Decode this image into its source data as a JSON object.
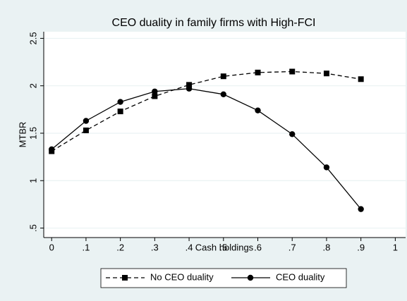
{
  "chart_data": {
    "type": "line",
    "title": "CEO duality in family firms with High-FCI",
    "xlabel": "Cash holdings",
    "ylabel": "MTBR",
    "x": [
      0,
      0.1,
      0.2,
      0.3,
      0.4,
      0.5,
      0.6,
      0.7,
      0.8,
      0.9
    ],
    "series": [
      {
        "name": "No CEO duality",
        "color": "#000000",
        "marker": "square",
        "dashed": true,
        "values": [
          1.31,
          1.53,
          1.73,
          1.89,
          2.01,
          2.1,
          2.14,
          2.15,
          2.13,
          2.07
        ]
      },
      {
        "name": "CEO duality",
        "color": "#000000",
        "marker": "circle",
        "dashed": false,
        "values": [
          1.33,
          1.63,
          1.83,
          1.94,
          1.97,
          1.91,
          1.74,
          1.49,
          1.14,
          0.7
        ]
      }
    ],
    "xlim": [
      -0.023,
      1.03
    ],
    "ylim": [
      0.4,
      2.57
    ],
    "xticks": [
      0,
      {
        "value": 0.1,
        "label": ".1"
      },
      {
        "value": 0.2,
        "label": ".2"
      },
      {
        "value": 0.3,
        "label": ".3"
      },
      {
        "value": 0.4,
        "label": ".4"
      },
      {
        "value": 0.5,
        "label": ".5"
      },
      {
        "value": 0.6,
        "label": ".6"
      },
      {
        "value": 0.7,
        "label": ".7"
      },
      {
        "value": 0.8,
        "label": ".8"
      },
      {
        "value": 0.9,
        "label": ".9"
      },
      1
    ],
    "yticks": [
      {
        "value": 0.5,
        "label": ".5"
      },
      1,
      1.5,
      2,
      2.5
    ],
    "grid": true,
    "legend": "bottom"
  }
}
